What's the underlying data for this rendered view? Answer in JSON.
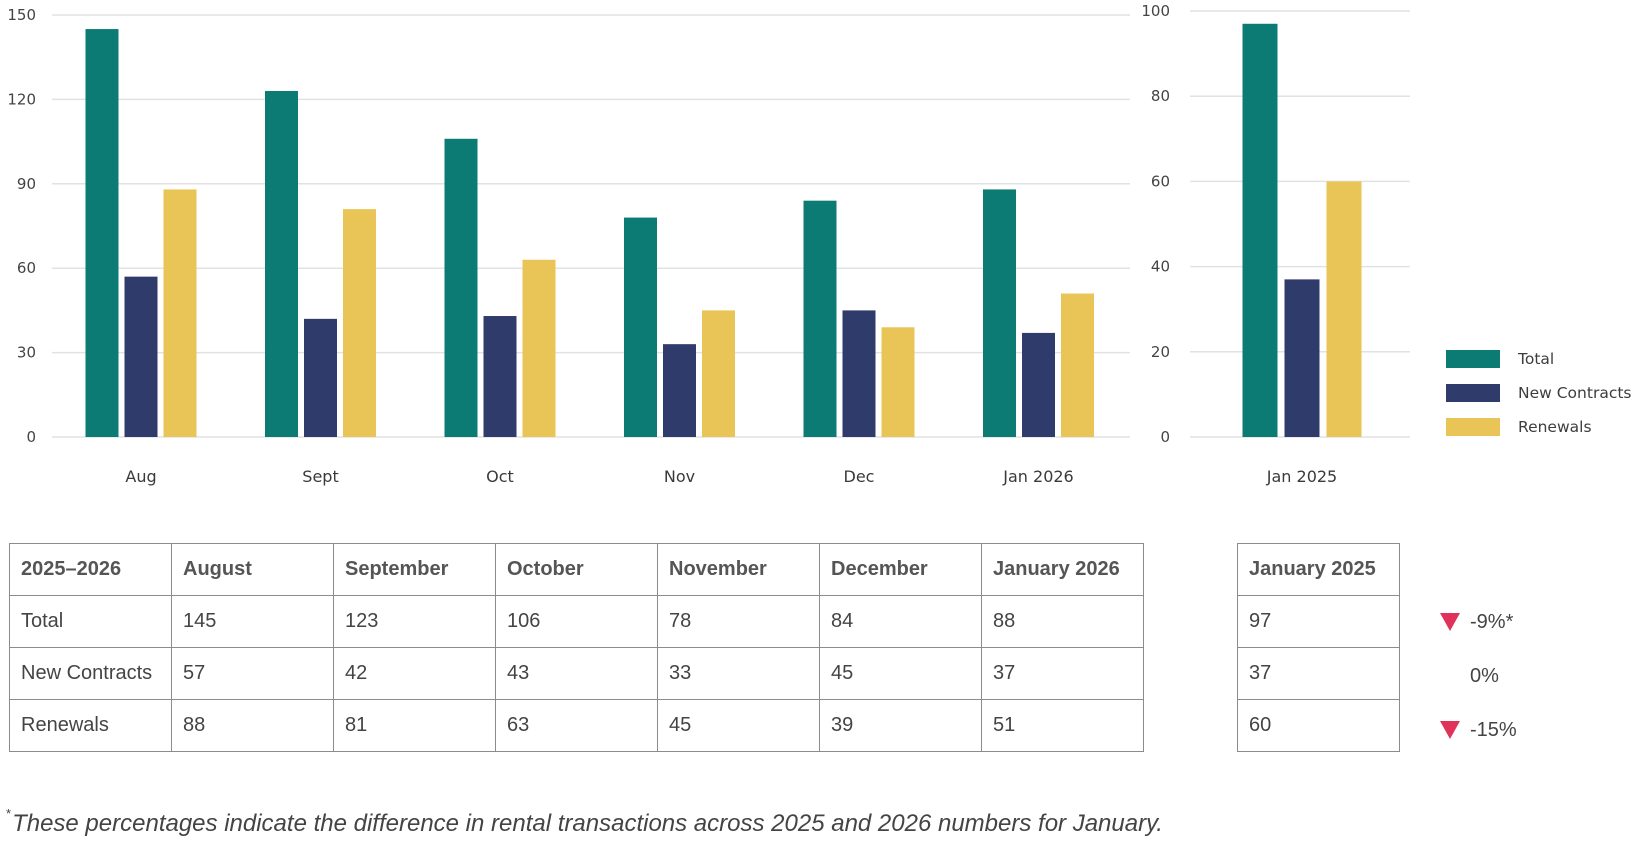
{
  "chart_data": [
    {
      "type": "bar",
      "categories": [
        "Aug",
        "Sept",
        "Oct",
        "Nov",
        "Dec",
        "Jan 2026"
      ],
      "series": [
        {
          "name": "Total",
          "values": [
            145,
            123,
            106,
            78,
            84,
            88
          ]
        },
        {
          "name": "New Contracts",
          "values": [
            57,
            42,
            43,
            33,
            45,
            37
          ]
        },
        {
          "name": "Renewals",
          "values": [
            88,
            81,
            63,
            45,
            39,
            51
          ]
        }
      ],
      "yticks": [
        0,
        30,
        60,
        90,
        120,
        150
      ],
      "ylim": [
        0,
        150
      ],
      "grid": true
    },
    {
      "type": "bar",
      "categories": [
        "Jan 2025"
      ],
      "series": [
        {
          "name": "Total",
          "values": [
            97
          ]
        },
        {
          "name": "New Contracts",
          "values": [
            37
          ]
        },
        {
          "name": "Renewals",
          "values": [
            60
          ]
        }
      ],
      "yticks": [
        0,
        20,
        40,
        60,
        80,
        100
      ],
      "ylim": [
        0,
        100
      ],
      "grid": true
    }
  ],
  "colors": {
    "Total": "#0b7b74",
    "New Contracts": "#2f3b6b",
    "Renewals": "#e8c556",
    "down": "#e0335c"
  },
  "legend": [
    {
      "label": "Total",
      "color": "#0b7b74"
    },
    {
      "label": "New Contracts",
      "color": "#2f3b6b"
    },
    {
      "label": "Renewals",
      "color": "#e8c556"
    }
  ],
  "table_main": {
    "headers": [
      "2025–2026",
      "August",
      "September",
      "October",
      "November",
      "December",
      "January 2026"
    ],
    "rows": [
      [
        "Total",
        "145",
        "123",
        "106",
        "78",
        "84",
        "88"
      ],
      [
        "New Contracts",
        "57",
        "42",
        "43",
        "33",
        "45",
        "37"
      ],
      [
        "Renewals",
        "88",
        "81",
        "63",
        "45",
        "39",
        "51"
      ]
    ]
  },
  "table_side": {
    "header": "January 2025",
    "rows": [
      "97",
      "37",
      "60"
    ]
  },
  "changes": [
    {
      "value": "-9%*",
      "direction": "down"
    },
    {
      "value": "0%",
      "direction": "none"
    },
    {
      "value": "-15%",
      "direction": "down"
    }
  ],
  "footnote": {
    "marker": "*",
    "text": "These percentages indicate the difference in rental transactions across 2025 and 2026 numbers for January."
  }
}
